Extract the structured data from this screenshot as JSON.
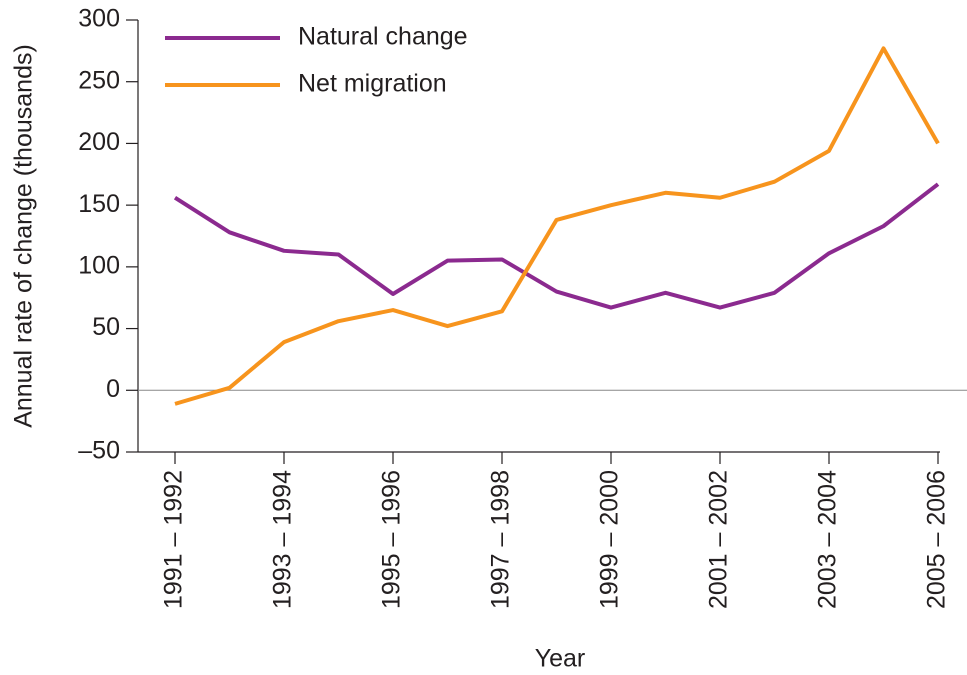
{
  "chart_data": {
    "type": "line",
    "y_label": "Annual rate of change (thousands)",
    "x_label": "Year",
    "categories": [
      "1991 – 1992",
      null,
      "1993 – 1994",
      null,
      "1995 – 1996",
      null,
      "1997 – 1998",
      null,
      "1999 – 2000",
      null,
      "2001 – 2002",
      null,
      "2003 – 2004",
      null,
      "2005 – 2006"
    ],
    "series": [
      {
        "name": "Natural change",
        "color": "#8b2a8f",
        "values": [
          156,
          128,
          113,
          110,
          78,
          105,
          106,
          80,
          67,
          79,
          67,
          79,
          111,
          133,
          167
        ]
      },
      {
        "name": "Net migration",
        "color": "#f7941d",
        "values": [
          -11,
          2,
          39,
          56,
          65,
          52,
          64,
          138,
          150,
          160,
          156,
          169,
          194,
          277,
          200
        ]
      }
    ],
    "ylim": [
      -50,
      300
    ],
    "yticks": [
      {
        "value": -50,
        "label": "–50"
      },
      0,
      50,
      100,
      150,
      200,
      250,
      300
    ],
    "legend": "upper left"
  }
}
